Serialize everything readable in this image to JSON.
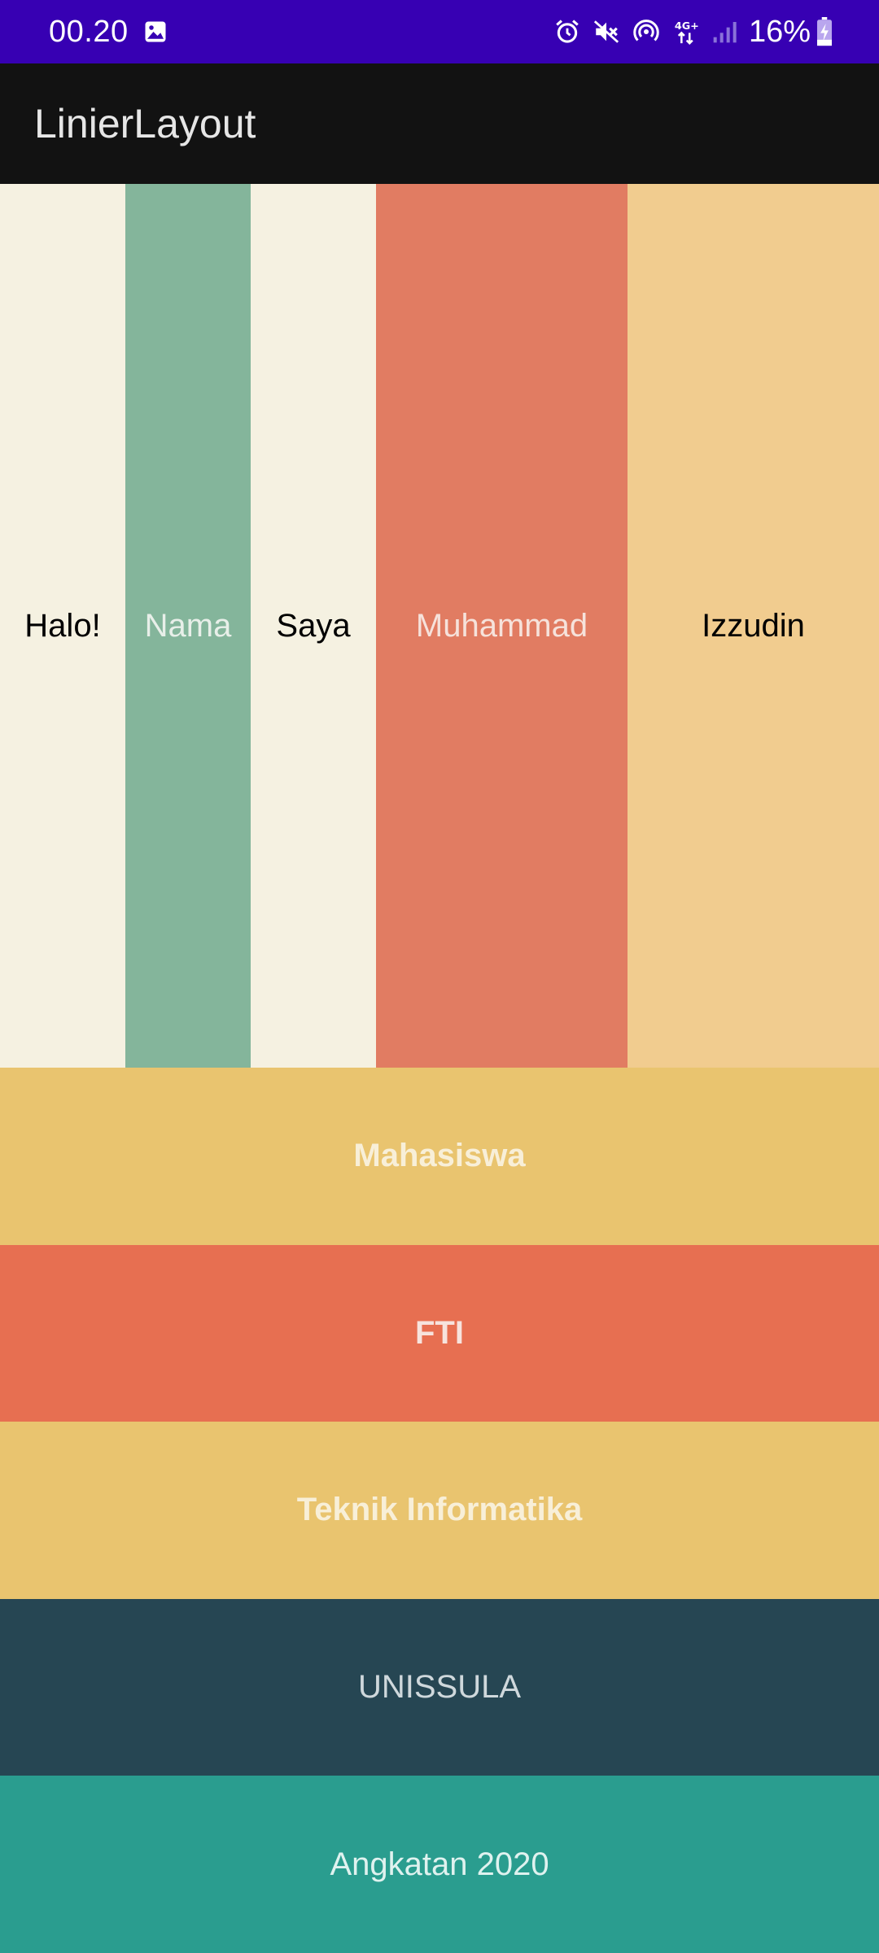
{
  "status_bar": {
    "time": "00.20",
    "battery": "16%",
    "background": "#3700b3",
    "icons": [
      "gallery-icon",
      "alarm-icon",
      "mute-icon",
      "hotspot-icon",
      "network-4g-icon",
      "signal-icon",
      "battery-charging-icon"
    ]
  },
  "app_bar": {
    "title": "LinierLayout",
    "background": "#121212"
  },
  "columns": [
    {
      "label": "Halo!",
      "color": "#f5f1e1"
    },
    {
      "label": "Nama",
      "color": "#84b59b"
    },
    {
      "label": "Saya",
      "color": "#f5f1e1"
    },
    {
      "label": "Muhammad",
      "color": "#e17c62"
    },
    {
      "label": "Izzudin",
      "color": "#f1cc8f"
    }
  ],
  "rows": [
    {
      "label": "Mahasiswa",
      "color": "#e9c46f"
    },
    {
      "label": "FTI",
      "color": "#e76f51"
    },
    {
      "label": "Teknik Informatika",
      "color": "#e9c46f"
    },
    {
      "label": "UNISSULA",
      "color": "#264653"
    },
    {
      "label": "Angkatan 2020",
      "color": "#2a9d8f"
    }
  ]
}
